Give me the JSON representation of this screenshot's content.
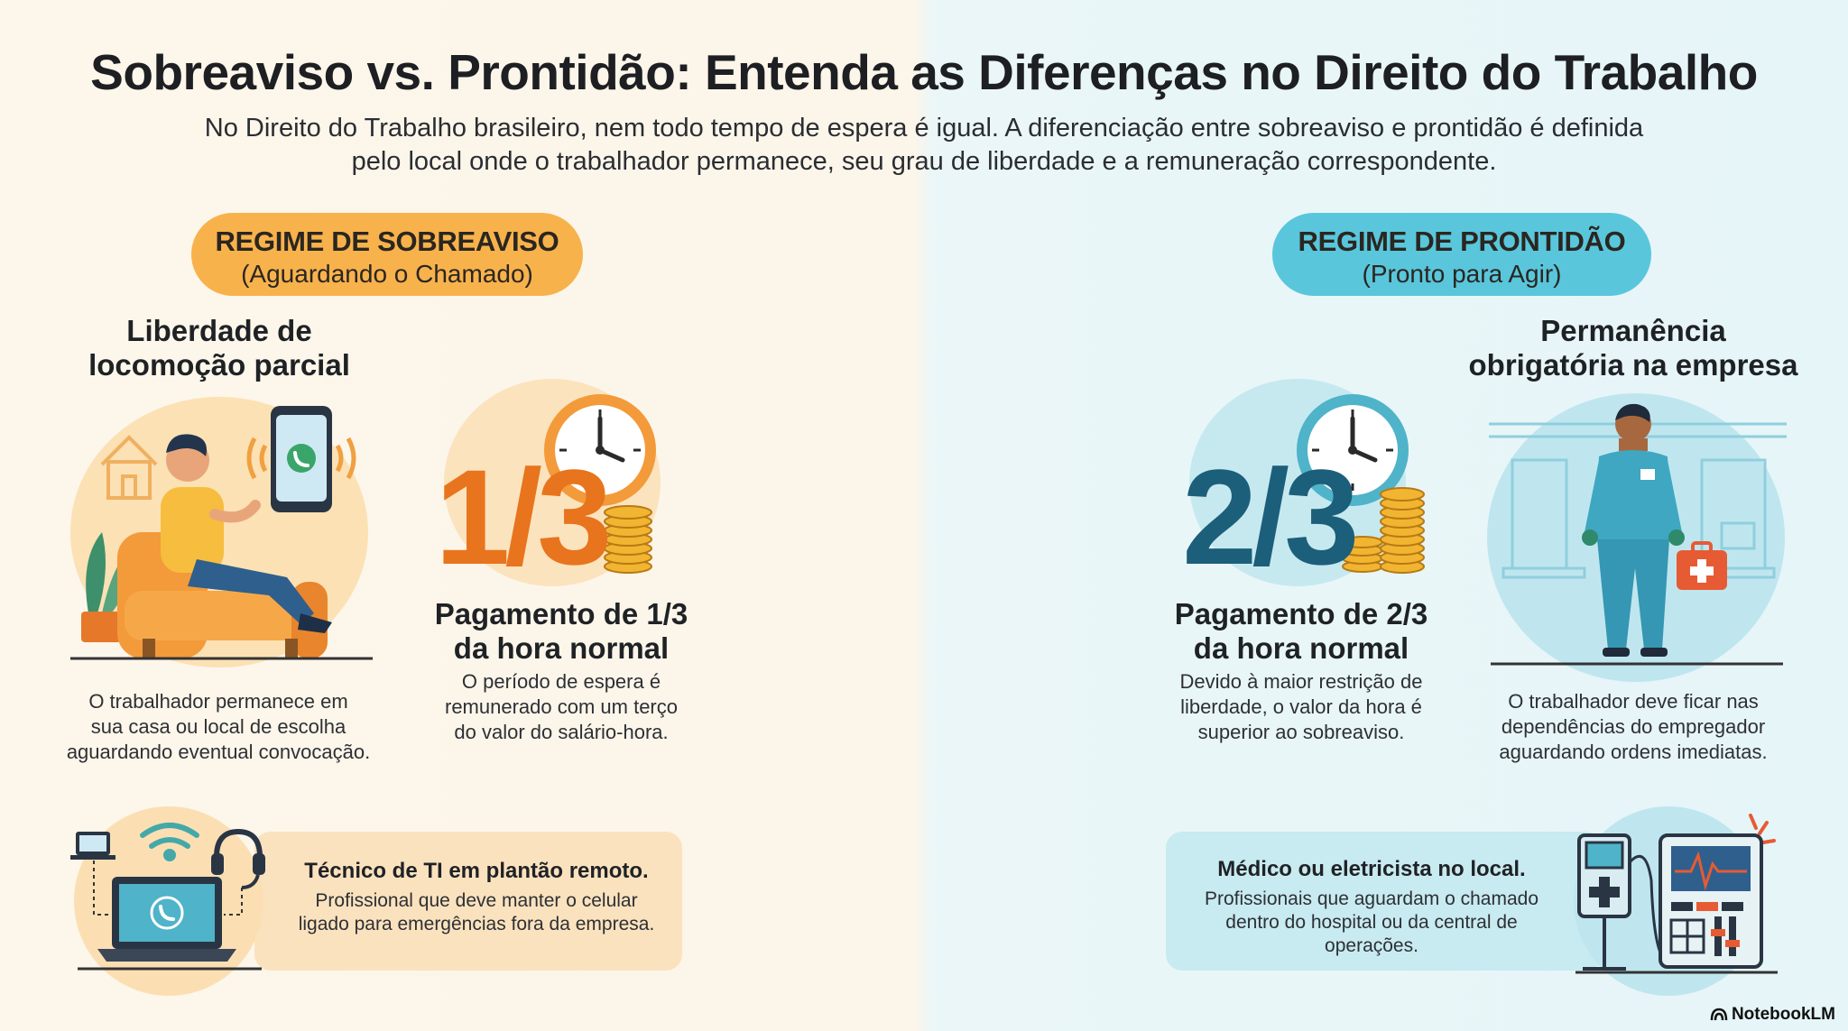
{
  "header": {
    "title": "Sobreaviso vs. Prontidão: Entenda as Diferenças no Direito do Trabalho",
    "subtitle_line1": "No Direito do Trabalho brasileiro, nem todo tempo de espera é igual. A diferenciação entre sobreaviso e prontidão é definida",
    "subtitle_line2": "pelo local onde o trabalhador permanece, seu grau de liberdade e a remuneração correspondente."
  },
  "sobreaviso": {
    "pill_title": "REGIME DE SOBREAVISO",
    "pill_subtitle": "(Aguardando o Chamado)",
    "freedom_heading_1": "Liberdade de",
    "freedom_heading_2": "locomoção parcial",
    "freedom_text_1": "O trabalhador permanece em",
    "freedom_text_2": "sua casa ou local de escolha",
    "freedom_text_3": "aguardando eventual convocação.",
    "fraction": "1/3",
    "pay_heading_1": "Pagamento de 1/3",
    "pay_heading_2": "da hora normal",
    "pay_text_1": "O período de espera é",
    "pay_text_2": "remunerado com um terço",
    "pay_text_3": "do valor do salário-hora.",
    "example_title": "Técnico de TI em plantão remoto.",
    "example_text_1": "Profissional que deve manter o celular",
    "example_text_2": "ligado para emergências fora da empresa.",
    "accent_color": "#f8b24c",
    "fraction_color": "#e8741e"
  },
  "prontidao": {
    "pill_title": "REGIME DE PRONTIDÃO",
    "pill_subtitle": "(Pronto para Agir)",
    "presence_heading_1": "Permanência",
    "presence_heading_2": "obrigatória na empresa",
    "presence_text_1": "O trabalhador deve ficar nas",
    "presence_text_2": "dependências do empregador",
    "presence_text_3": "aguardando ordens imediatas.",
    "fraction": "2/3",
    "pay_heading_1": "Pagamento de 2/3",
    "pay_heading_2": "da hora normal",
    "pay_text_1": "Devido à maior restrição de",
    "pay_text_2": "liberdade, o valor da hora é",
    "pay_text_3": "superior ao sobreaviso.",
    "example_title": "Médico ou eletricista no local.",
    "example_text_1": "Profissionais que aguardam o chamado",
    "example_text_2": "dentro do hospital ou da central de",
    "example_text_3": "operações.",
    "accent_color": "#59c6dc",
    "fraction_color": "#1c5f7a"
  },
  "icons": {
    "couch_person": "person-on-armchair-icon",
    "phone": "ringing-phone-icon",
    "house": "house-icon",
    "clock": "clock-icon",
    "coins": "coin-stack-icon",
    "laptop": "laptop-call-icon",
    "wifi": "wifi-icon",
    "headset": "headset-icon",
    "worker": "medical-worker-icon",
    "monitor": "medical-monitor-icon"
  },
  "brand": "NotebookLM"
}
